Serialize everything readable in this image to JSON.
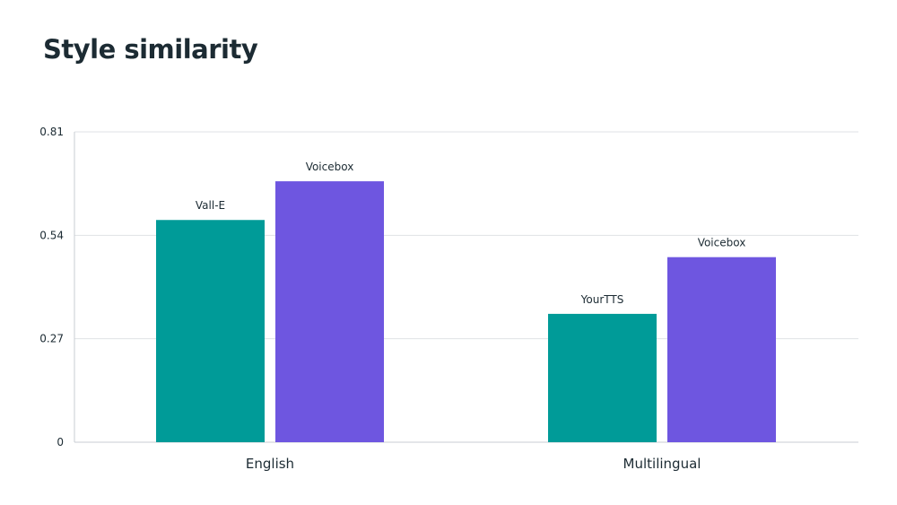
{
  "chart_data": {
    "type": "bar",
    "title": "Style similarity",
    "xlabel": "",
    "ylabel": "",
    "ylim": [
      0,
      0.81
    ],
    "yticks": [
      "0",
      "0.27",
      "0.54",
      "0.81"
    ],
    "grid": true,
    "categories": [
      "English",
      "Multilingual"
    ],
    "bars": [
      [
        {
          "label": "Vall-E",
          "value": 0.58,
          "color": "#009b98"
        },
        {
          "label": "Voicebox",
          "value": 0.681,
          "color": "#6e56e0"
        }
      ],
      [
        {
          "label": "YourTTS",
          "value": 0.335,
          "color": "#009b98"
        },
        {
          "label": "Voicebox",
          "value": 0.483,
          "color": "#6e56e0"
        }
      ]
    ]
  }
}
